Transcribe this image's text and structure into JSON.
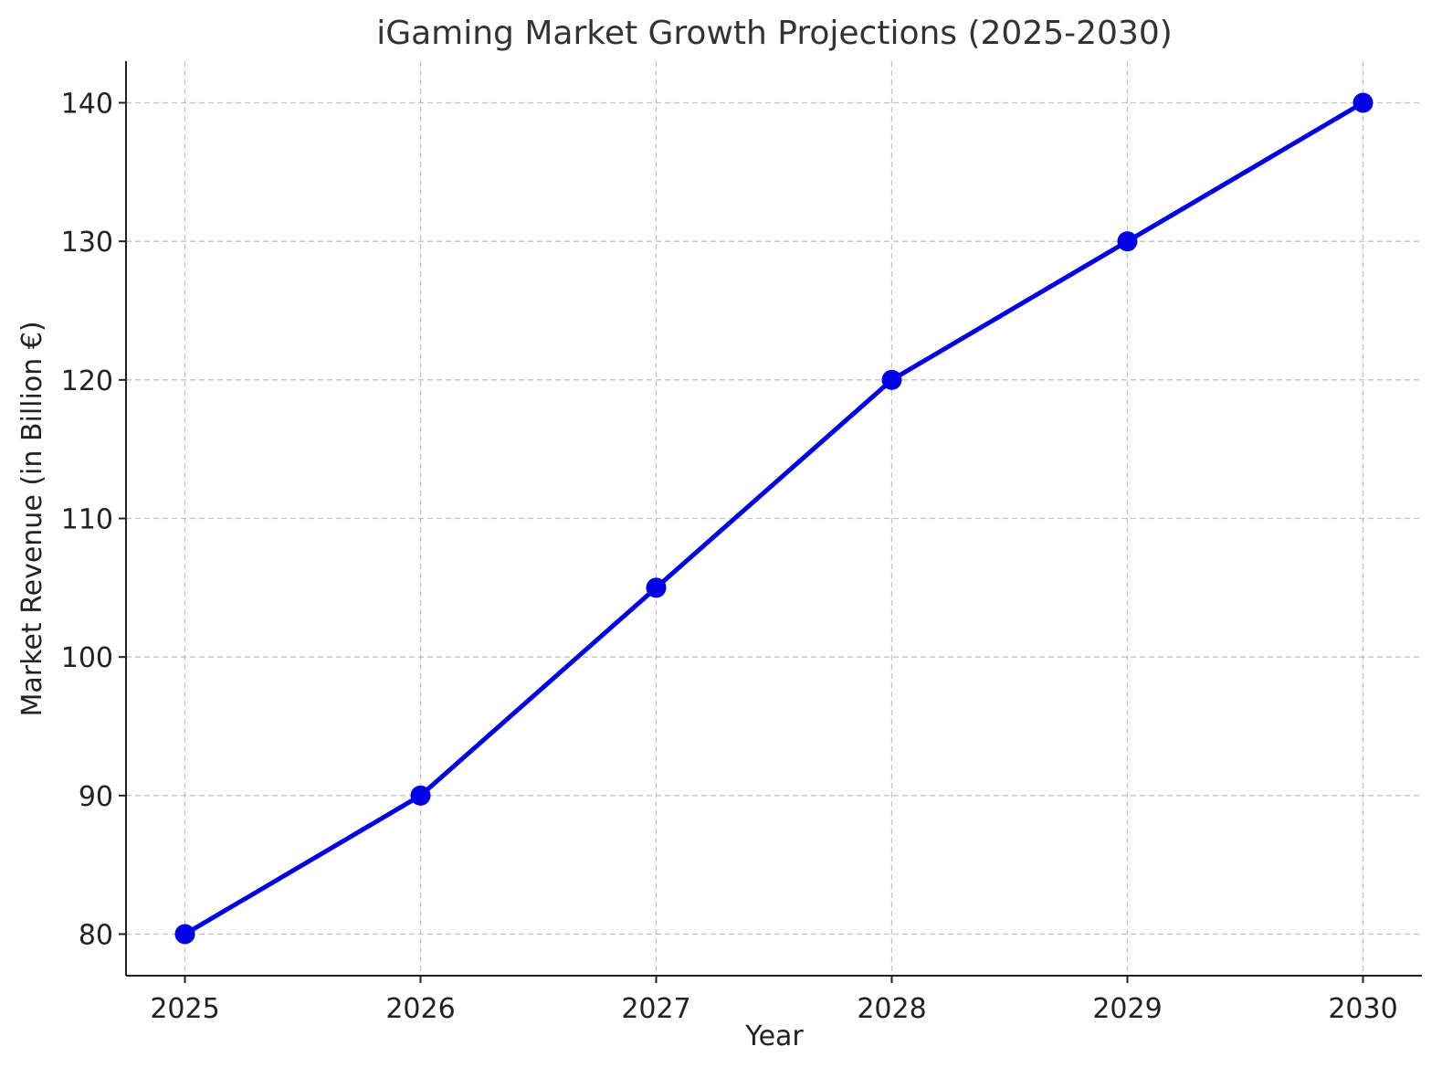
{
  "chart_data": {
    "type": "line",
    "title": "iGaming Market Growth Projections (2025-2030)",
    "xlabel": "Year",
    "ylabel": "Market Revenue (in Billion €)",
    "categories": [
      "2025",
      "2026",
      "2027",
      "2028",
      "2029",
      "2030"
    ],
    "series": [
      {
        "values": [
          80,
          90,
          105,
          120,
          130,
          140
        ],
        "color": "#0000e6",
        "marker": "circle"
      }
    ],
    "yticks": [
      "80",
      "90",
      "100",
      "110",
      "120",
      "130",
      "140"
    ],
    "ylim": [
      77,
      143
    ],
    "xlim": [
      2024.75,
      2030.25
    ],
    "grid": true,
    "legend": "none"
  }
}
